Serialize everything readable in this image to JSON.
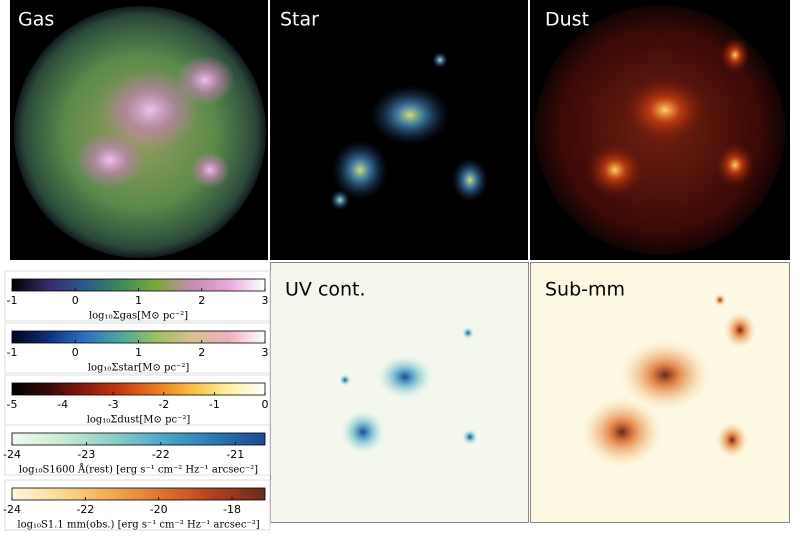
{
  "panels": [
    {
      "label": "Gas"
    },
    {
      "label": "Star"
    },
    {
      "label": "Dust"
    },
    {
      "label": "UV cont."
    },
    {
      "label": "Sub-mm"
    }
  ],
  "colorbars": [
    {
      "label": "log₁₀Σgas[M⊙ pc⁻²]",
      "lim": [
        -1,
        3
      ],
      "ticks": [
        -1,
        0,
        1,
        2,
        3
      ],
      "colors": [
        "#000000",
        "#3a2a6a",
        "#2a5a8a",
        "#3a8a5a",
        "#7aaa3a",
        "#c98ab0",
        "#e8a8e0",
        "#ffffff"
      ]
    },
    {
      "label": "log₁₀Σstar[M⊙ pc⁻²]",
      "lim": [
        -1,
        3
      ],
      "ticks": [
        -1,
        0,
        1,
        2,
        3
      ],
      "colors": [
        "#000020",
        "#10307a",
        "#2a70c0",
        "#4aa8a0",
        "#9ac060",
        "#d8c090",
        "#f0b0c0",
        "#ffffff"
      ]
    },
    {
      "label": "log₁₀Σdust[M⊙ pc⁻²]",
      "lim": [
        -5,
        0
      ],
      "ticks": [
        -5,
        -4,
        -3,
        -2,
        -1,
        0
      ],
      "colors": [
        "#000000",
        "#3a0808",
        "#8a1a0a",
        "#c83a10",
        "#ec7a20",
        "#f8c040",
        "#fff0a0",
        "#ffffff"
      ]
    },
    {
      "label": "log₁₀S1600 Å(rest) [erg s⁻¹ cm⁻² Hz⁻¹ arcsec⁻²]",
      "lim": [
        -24,
        -20.6
      ],
      "ticks": [
        -24,
        -23,
        -22,
        -21
      ],
      "colors": [
        "#f4fbf0",
        "#c8ead0",
        "#88cfc8",
        "#4aa8c8",
        "#2a78b8",
        "#1a4a90"
      ]
    },
    {
      "label": "log₁₀S1.1 mm(obs.) [erg s⁻¹ cm⁻² Hz⁻¹ arcsec⁻²]",
      "lim": [
        -24,
        -17.1
      ],
      "ticks": [
        -24,
        -22,
        -20,
        -18
      ],
      "colors": [
        "#fdf8e0",
        "#f8d890",
        "#f0a850",
        "#e07030",
        "#b04020",
        "#6a2a1a"
      ]
    }
  ]
}
